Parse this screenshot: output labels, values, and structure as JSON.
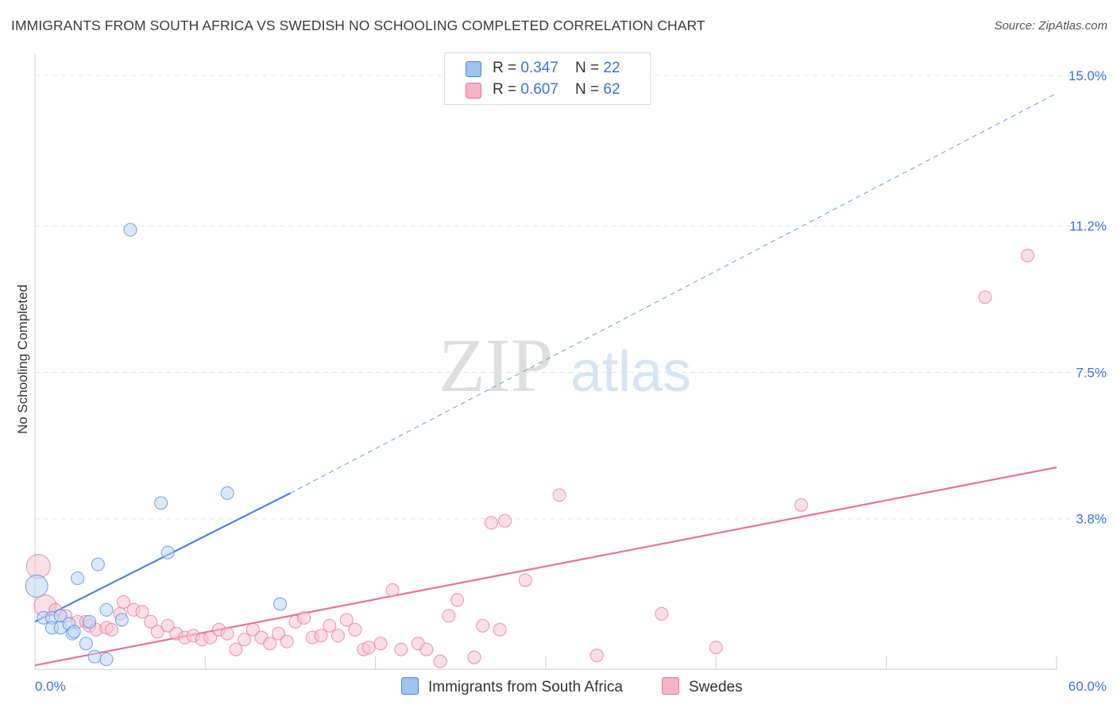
{
  "title": "IMMIGRANTS FROM SOUTH AFRICA VS SWEDISH NO SCHOOLING COMPLETED CORRELATION CHART",
  "source": "Source: ZipAtlas.com",
  "watermark": {
    "zip": "ZIP",
    "atlas": "atlas"
  },
  "legend": {
    "rows": [
      {
        "r_label": "R = ",
        "r_value": "0.347",
        "n_label": "N = ",
        "n_value": "22",
        "color": "#9ec3f2"
      },
      {
        "r_label": "R = ",
        "r_value": "0.607",
        "n_label": "N = ",
        "n_value": "62",
        "color": "#f5b4c6"
      }
    ]
  },
  "chart_data": {
    "type": "scatter",
    "title": "IMMIGRANTS FROM SOUTH AFRICA VS SWEDISH NO SCHOOLING COMPLETED CORRELATION CHART",
    "xlabel": "",
    "ylabel": "No Schooling Completed",
    "xlim": [
      0,
      60
    ],
    "ylim": [
      0,
      15.4
    ],
    "x_tick_labels": [
      {
        "value": 0,
        "label": "0.0%"
      },
      {
        "value": 60,
        "label": "60.0%"
      }
    ],
    "y_tick_labels": [
      {
        "value": 3.8,
        "label": "3.8%"
      },
      {
        "value": 7.5,
        "label": "7.5%"
      },
      {
        "value": 11.2,
        "label": "11.2%"
      },
      {
        "value": 15.0,
        "label": "15.0%"
      }
    ],
    "grid": true,
    "legend_position": "top-center",
    "series": [
      {
        "name": "Immigrants from South Africa",
        "color": "#4a86d8",
        "fill": "#bcd5f5",
        "trend": {
          "x0": 0,
          "y0": 1.2,
          "x1": 15,
          "y1": 4.45,
          "dash_to_x": 60,
          "dash_to_y": 14.55
        },
        "points": [
          [
            0.1,
            2.1,
            14
          ],
          [
            0.5,
            1.3,
            8
          ],
          [
            1.0,
            1.3,
            8
          ],
          [
            1.5,
            1.35,
            8
          ],
          [
            1.0,
            1.05,
            8
          ],
          [
            1.5,
            1.05,
            8
          ],
          [
            2.0,
            1.15,
            8
          ],
          [
            2.2,
            0.9,
            8
          ],
          [
            2.3,
            0.95,
            8
          ],
          [
            3.2,
            1.2,
            8
          ],
          [
            2.5,
            2.3,
            8
          ],
          [
            3.7,
            2.65,
            8
          ],
          [
            4.2,
            1.5,
            8
          ],
          [
            4.2,
            0.25,
            8
          ],
          [
            3.5,
            0.32,
            8
          ],
          [
            5.1,
            1.25,
            8
          ],
          [
            5.6,
            11.1,
            8
          ],
          [
            7.4,
            4.2,
            8
          ],
          [
            7.8,
            2.95,
            8
          ],
          [
            11.3,
            4.45,
            8
          ],
          [
            14.4,
            1.65,
            8
          ],
          [
            3.0,
            0.65,
            8
          ]
        ]
      },
      {
        "name": "Swedes",
        "color": "#e6739a",
        "fill": "#f7c3d2",
        "trend": {
          "x0": 0,
          "y0": 0.1,
          "x1": 60,
          "y1": 5.1
        },
        "points": [
          [
            0.2,
            2.6,
            15
          ],
          [
            0.6,
            1.6,
            14
          ],
          [
            1.2,
            1.5,
            8
          ],
          [
            1.8,
            1.35,
            8
          ],
          [
            2.5,
            1.2,
            8
          ],
          [
            3.0,
            1.2,
            8
          ],
          [
            3.2,
            1.1,
            8
          ],
          [
            3.6,
            1.0,
            8
          ],
          [
            4.2,
            1.05,
            8
          ],
          [
            4.5,
            1.0,
            8
          ],
          [
            5.0,
            1.4,
            8
          ],
          [
            5.2,
            1.7,
            8
          ],
          [
            5.8,
            1.5,
            8
          ],
          [
            6.3,
            1.45,
            8
          ],
          [
            6.8,
            1.2,
            8
          ],
          [
            7.2,
            0.95,
            8
          ],
          [
            7.8,
            1.1,
            8
          ],
          [
            8.3,
            0.9,
            8
          ],
          [
            8.8,
            0.8,
            8
          ],
          [
            9.3,
            0.85,
            8
          ],
          [
            9.8,
            0.75,
            8
          ],
          [
            10.3,
            0.8,
            8
          ],
          [
            10.8,
            1.0,
            8
          ],
          [
            11.3,
            0.9,
            8
          ],
          [
            11.8,
            0.5,
            8
          ],
          [
            12.3,
            0.75,
            8
          ],
          [
            12.8,
            1.0,
            8
          ],
          [
            13.3,
            0.8,
            8
          ],
          [
            13.8,
            0.65,
            8
          ],
          [
            14.3,
            0.9,
            8
          ],
          [
            14.8,
            0.7,
            8
          ],
          [
            15.3,
            1.2,
            8
          ],
          [
            15.8,
            1.3,
            8
          ],
          [
            16.3,
            0.8,
            8
          ],
          [
            16.8,
            0.85,
            8
          ],
          [
            17.3,
            1.1,
            8
          ],
          [
            17.8,
            0.85,
            8
          ],
          [
            18.3,
            1.25,
            8
          ],
          [
            18.8,
            1.0,
            8
          ],
          [
            19.3,
            0.5,
            8
          ],
          [
            19.6,
            0.55,
            8
          ],
          [
            20.3,
            0.65,
            8
          ],
          [
            21.0,
            2.0,
            8
          ],
          [
            21.5,
            0.5,
            8
          ],
          [
            22.5,
            0.65,
            8
          ],
          [
            23.0,
            0.5,
            8
          ],
          [
            23.8,
            0.2,
            8
          ],
          [
            24.3,
            1.35,
            8
          ],
          [
            24.8,
            1.75,
            8
          ],
          [
            25.8,
            0.3,
            8
          ],
          [
            26.3,
            1.1,
            8
          ],
          [
            26.8,
            3.7,
            8
          ],
          [
            27.3,
            1.0,
            8
          ],
          [
            27.6,
            3.75,
            8
          ],
          [
            28.8,
            2.25,
            8
          ],
          [
            30.8,
            4.4,
            8
          ],
          [
            33.0,
            0.35,
            8
          ],
          [
            36.8,
            1.4,
            8
          ],
          [
            40.0,
            0.55,
            8
          ],
          [
            45.0,
            4.15,
            8
          ],
          [
            55.8,
            9.4,
            8
          ],
          [
            58.3,
            10.45,
            8
          ]
        ]
      }
    ]
  }
}
